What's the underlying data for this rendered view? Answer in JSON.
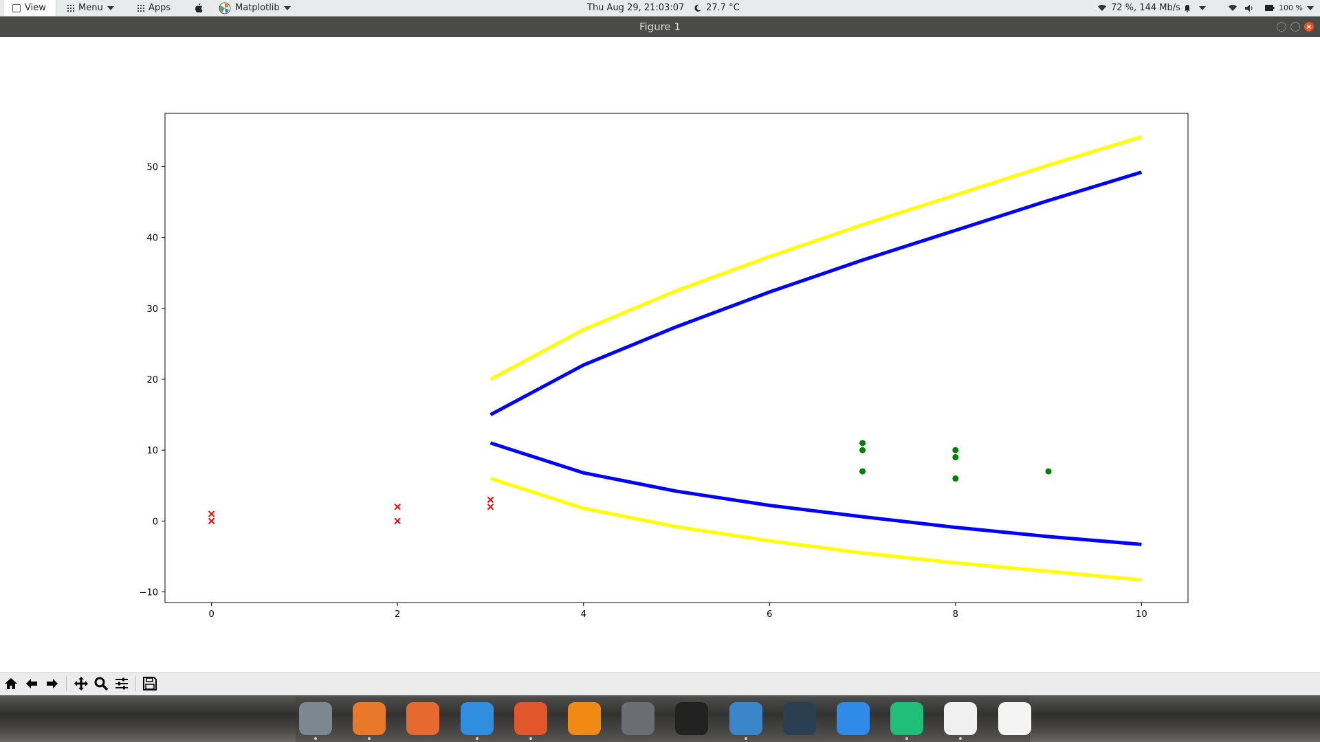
{
  "top_panel": {
    "view_label": "View",
    "menu_label": "Menu",
    "apps_label": "Apps",
    "app_name": "Matplotlib",
    "datetime": "Thu Aug 29, 21:03:07",
    "temperature": "27.7 °C",
    "network": "72 %, 144 Mb/s",
    "battery": "100 %"
  },
  "window": {
    "title": "Figure 1"
  },
  "colors": {
    "yellow_series": "#ffff00",
    "blue_series": "#0000ff",
    "red_markers": "#ff0000",
    "green_markers": "#008000"
  },
  "chart_data": {
    "type": "line",
    "title": "",
    "xlabel": "",
    "ylabel": "",
    "xlim": [
      -0.5,
      10.5
    ],
    "ylim": [
      -11.5,
      57.5
    ],
    "xticks": [
      0,
      2,
      4,
      6,
      8,
      10
    ],
    "yticks": [
      -10,
      0,
      10,
      20,
      30,
      40,
      50
    ],
    "grid": false,
    "series": [
      {
        "kind": "line",
        "color": "yellow",
        "x": [
          3,
          4,
          5,
          6,
          7,
          8,
          9,
          10
        ],
        "y": [
          20,
          27,
          32.5,
          37.3,
          41.8,
          46,
          50.2,
          54.2
        ]
      },
      {
        "kind": "line",
        "color": "blue",
        "x": [
          3,
          4,
          5,
          6,
          7,
          8,
          9,
          10
        ],
        "y": [
          15,
          22,
          27.4,
          32.3,
          36.8,
          41,
          45.2,
          49.2
        ]
      },
      {
        "kind": "line",
        "color": "blue",
        "x": [
          3,
          4,
          5,
          6,
          7,
          8,
          9,
          10
        ],
        "y": [
          11,
          6.8,
          4.2,
          2.2,
          0.6,
          -0.9,
          -2.2,
          -3.3
        ]
      },
      {
        "kind": "line",
        "color": "yellow",
        "x": [
          3,
          4,
          5,
          6,
          7,
          8,
          9,
          10
        ],
        "y": [
          6,
          1.8,
          -0.8,
          -2.8,
          -4.5,
          -5.9,
          -7.1,
          -8.3
        ]
      },
      {
        "kind": "scatter",
        "marker": "x",
        "color": "red",
        "x": [
          0,
          0,
          2,
          2,
          3,
          3
        ],
        "y": [
          1,
          0,
          2,
          0,
          3,
          2
        ]
      },
      {
        "kind": "scatter",
        "marker": "o",
        "color": "green",
        "x": [
          7,
          7,
          7,
          8,
          8,
          8,
          9
        ],
        "y": [
          11,
          10,
          7,
          10,
          9,
          6,
          7
        ]
      }
    ]
  },
  "toolbar": {
    "buttons": [
      "home-icon",
      "back-icon",
      "forward-icon",
      "pan-icon",
      "zoom-icon",
      "configure-icon",
      "save-icon"
    ]
  },
  "dock": {
    "icons": [
      {
        "name": "system-settings-icon",
        "color": "#7d8790",
        "running": true
      },
      {
        "name": "firefox-icon",
        "color": "#e8782a",
        "running": true
      },
      {
        "name": "downloader-icon",
        "color": "#e56a2f",
        "running": false
      },
      {
        "name": "finder-icon",
        "color": "#2f8ee0",
        "running": true
      },
      {
        "name": "gimp-icon",
        "color": "#e2572a",
        "running": true
      },
      {
        "name": "vlc-icon",
        "color": "#f08a15",
        "running": false
      },
      {
        "name": "settings-gear-icon",
        "color": "#6a6e73",
        "running": false
      },
      {
        "name": "terminal-icon",
        "color": "#222222",
        "running": false
      },
      {
        "name": "vscode-icon",
        "color": "#3a86c9",
        "running": true
      },
      {
        "name": "stacer-icon",
        "color": "#2a4050",
        "running": false
      },
      {
        "name": "preferences-icon",
        "color": "#2f8ae8",
        "running": false
      },
      {
        "name": "software-updater-icon",
        "color": "#1fbf7a",
        "running": true
      },
      {
        "name": "matplotlib-icon",
        "color": "#f0f0f0",
        "running": true
      },
      {
        "name": "app-launcher-icon",
        "color": "#f4f4f4",
        "running": false
      }
    ]
  }
}
